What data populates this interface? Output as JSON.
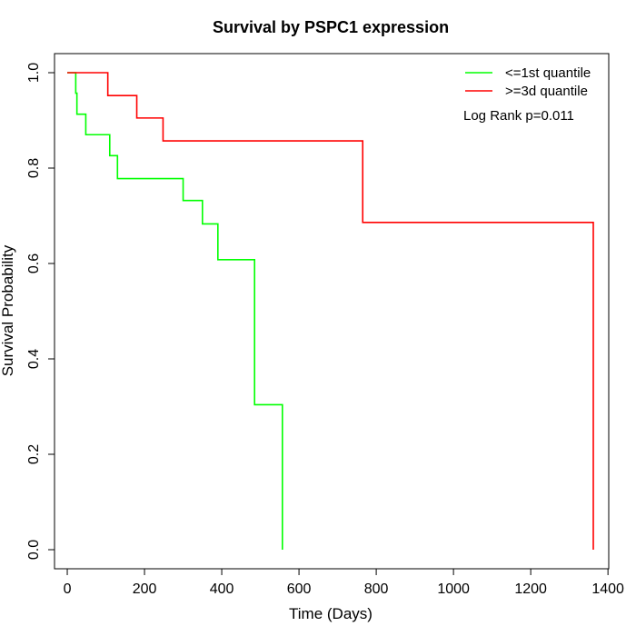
{
  "chart_data": {
    "type": "line",
    "title": "Survival by PSPC1 expression",
    "xlabel": "Time (Days)",
    "ylabel": "Survival Probability",
    "xlim": [
      -33,
      1402
    ],
    "ylim": [
      -0.04,
      1.04
    ],
    "xticks": [
      0,
      200,
      400,
      600,
      800,
      1000,
      1200,
      1400
    ],
    "yticks": [
      0.0,
      0.2,
      0.4,
      0.6,
      0.8,
      1.0
    ],
    "xtick_labels": [
      "0",
      "200",
      "400",
      "600",
      "800",
      "1000",
      "1200",
      "1400"
    ],
    "ytick_labels": [
      "0.0",
      "0.2",
      "0.4",
      "0.6",
      "0.8",
      "1.0"
    ],
    "grid": false,
    "legend_position": "top-right",
    "annotation": "Log Rank p=0.011",
    "series": [
      {
        "name": "<=1st quantile",
        "color": "#00ff00",
        "step": true,
        "x": [
          0,
          22,
          25,
          48,
          110,
          130,
          300,
          350,
          390,
          485,
          557,
          557
        ],
        "y": [
          1.0,
          0.957,
          0.913,
          0.87,
          0.826,
          0.778,
          0.732,
          0.683,
          0.608,
          0.304,
          0.304,
          0.0
        ]
      },
      {
        "name": ">=3d quantile",
        "color": "#ff0000",
        "step": true,
        "x": [
          0,
          105,
          180,
          248,
          765,
          1362,
          1362
        ],
        "y": [
          1.0,
          0.952,
          0.905,
          0.857,
          0.686,
          0.686,
          0.0
        ]
      }
    ]
  }
}
